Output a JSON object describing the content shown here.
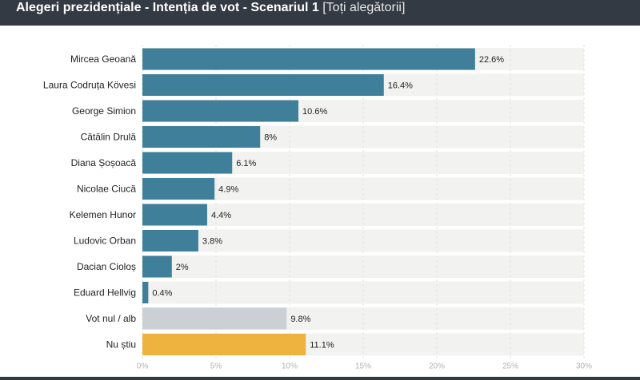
{
  "header": {
    "title": "Alegeri prezidențiale - Intenția de vot - Scenariul 1",
    "subtitle": "[Toți alegătorii]"
  },
  "colors": {
    "header_bg": "#333a44",
    "bar_candidate": "#3f7f99",
    "bar_null": "#cbd0d5",
    "bar_unknown": "#eeb33f",
    "track": "#f2f2f0"
  },
  "chart_data": {
    "type": "bar",
    "orientation": "horizontal",
    "categories": [
      "Mircea Geoană",
      "Laura Codruța Kövesi",
      "George Simion",
      "Cătălin Drulă",
      "Diana Șoșoacă",
      "Nicolae Ciucă",
      "Kelemen Hunor",
      "Ludovic Orban",
      "Dacian Cioloș",
      "Eduard Hellvig",
      "Vot nul / alb",
      "Nu știu"
    ],
    "values": [
      22.6,
      16.4,
      10.6,
      8,
      6.1,
      4.9,
      4.4,
      3.8,
      2,
      0.4,
      9.8,
      11.1
    ],
    "value_labels": [
      "22.6%",
      "16.4%",
      "10.6%",
      "8%",
      "6.1%",
      "4.9%",
      "4.4%",
      "3.8%",
      "2%",
      "0.4%",
      "9.8%",
      "11.1%"
    ],
    "bar_colors": [
      "#3f7f99",
      "#3f7f99",
      "#3f7f99",
      "#3f7f99",
      "#3f7f99",
      "#3f7f99",
      "#3f7f99",
      "#3f7f99",
      "#3f7f99",
      "#3f7f99",
      "#cbd0d5",
      "#eeb33f"
    ],
    "xlim": [
      0,
      30
    ],
    "xticks": [
      0,
      5,
      10,
      15,
      20,
      25,
      30
    ],
    "xtick_labels": [
      "0%",
      "5%",
      "10%",
      "15%",
      "20%",
      "25%",
      "30%"
    ],
    "title": "Alegeri prezidențiale - Intenția de vot - Scenariul 1",
    "xlabel": "",
    "ylabel": "",
    "grid": true,
    "legend": "none"
  }
}
